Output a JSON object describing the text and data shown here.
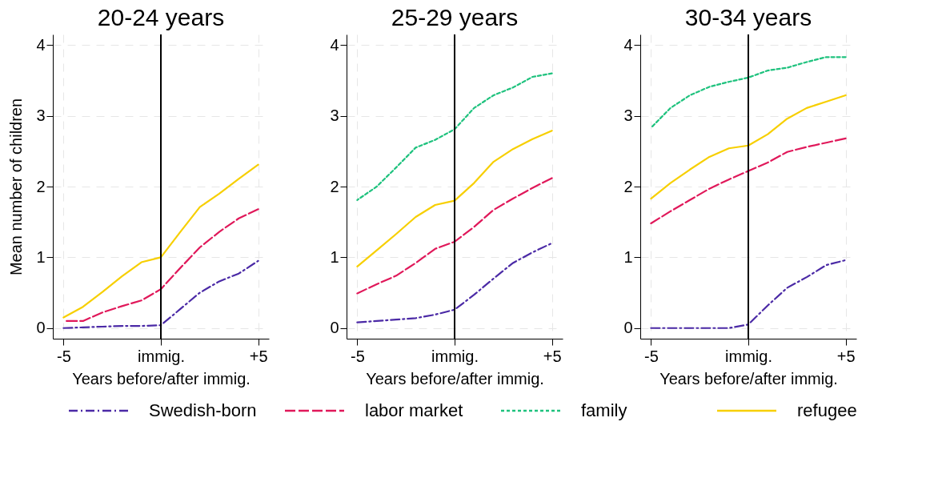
{
  "chart_data": [
    {
      "type": "line",
      "title": "20-24 years",
      "xlabel": "Years before/after immig.",
      "ylabel": "Mean number of children",
      "x": [
        -5,
        -4,
        -3,
        -2,
        -1,
        0,
        1,
        2,
        3,
        4,
        5
      ],
      "series": [
        {
          "name": "Swedish-born",
          "color": "#4b2aa6",
          "line_style": "dashdot",
          "values": [
            0.0,
            0.01,
            0.02,
            0.03,
            0.03,
            0.04,
            0.27,
            0.5,
            0.66,
            0.77,
            0.95
          ]
        },
        {
          "name": "labor market",
          "color": "#e0185a",
          "line_style": "dashed",
          "values": [
            0.1,
            0.1,
            0.22,
            0.31,
            0.39,
            0.55,
            0.85,
            1.14,
            1.36,
            1.55,
            1.68
          ]
        },
        {
          "name": "refugee",
          "color": "#f7cf00",
          "line_style": "solid",
          "values": [
            0.15,
            0.3,
            0.51,
            0.73,
            0.93,
            1.0,
            1.36,
            1.71,
            1.9,
            2.11,
            2.31
          ]
        }
      ],
      "xlim": [
        -5.55,
        5.55
      ],
      "xticks": [
        {
          "value": -5,
          "label": "-5"
        },
        {
          "value": 0,
          "label": "immig."
        },
        {
          "value": 5,
          "label": "+5"
        }
      ],
      "ylim": [
        -0.15,
        4.15
      ],
      "yticks": [
        0,
        1,
        2,
        3,
        4
      ],
      "ref_lines": [
        {
          "axis": "x",
          "value": 0,
          "color": "#000000"
        }
      ],
      "grid": true,
      "legend": "bottom"
    },
    {
      "type": "line",
      "title": "25-29 years",
      "xlabel": "Years before/after immig.",
      "x": [
        -5,
        -4,
        -3,
        -2,
        -1,
        0,
        1,
        2,
        3,
        4,
        5
      ],
      "series": [
        {
          "name": "Swedish-born",
          "color": "#4b2aa6",
          "line_style": "dashdot",
          "values": [
            0.08,
            0.1,
            0.12,
            0.14,
            0.19,
            0.26,
            0.47,
            0.7,
            0.92,
            1.07,
            1.2
          ]
        },
        {
          "name": "labor market",
          "color": "#e0185a",
          "line_style": "dashed",
          "values": [
            0.49,
            0.62,
            0.74,
            0.92,
            1.12,
            1.22,
            1.43,
            1.67,
            1.83,
            1.98,
            2.12
          ]
        },
        {
          "name": "family",
          "color": "#1fc27e",
          "line_style": "dotted",
          "values": [
            1.81,
            2.0,
            2.27,
            2.55,
            2.66,
            2.81,
            3.11,
            3.29,
            3.4,
            3.55,
            3.6
          ]
        },
        {
          "name": "refugee",
          "color": "#f7cf00",
          "line_style": "solid",
          "values": [
            0.87,
            1.1,
            1.33,
            1.57,
            1.74,
            1.8,
            2.05,
            2.35,
            2.53,
            2.67,
            2.79
          ]
        }
      ],
      "xlim": [
        -5.55,
        5.55
      ],
      "xticks": [
        {
          "value": -5,
          "label": "-5"
        },
        {
          "value": 0,
          "label": "immig."
        },
        {
          "value": 5,
          "label": "+5"
        }
      ],
      "ylim": [
        -0.15,
        4.15
      ],
      "yticks": [
        0,
        1,
        2,
        3,
        4
      ],
      "ref_lines": [
        {
          "axis": "x",
          "value": 0,
          "color": "#000000"
        }
      ],
      "grid": true
    },
    {
      "type": "line",
      "title": "30-34 years",
      "xlabel": "Years before/after immig.",
      "x": [
        -5,
        -4,
        -3,
        -2,
        -1,
        0,
        1,
        2,
        3,
        4,
        5
      ],
      "series": [
        {
          "name": "Swedish-born",
          "color": "#4b2aa6",
          "line_style": "dashdot",
          "values": [
            0.0,
            0.0,
            0.0,
            0.0,
            0.0,
            0.05,
            0.32,
            0.57,
            0.72,
            0.89,
            0.96
          ]
        },
        {
          "name": "labor market",
          "color": "#e0185a",
          "line_style": "dashed",
          "values": [
            1.48,
            1.65,
            1.81,
            1.97,
            2.1,
            2.22,
            2.34,
            2.49,
            2.56,
            2.62,
            2.68
          ]
        },
        {
          "name": "family",
          "color": "#1fc27e",
          "line_style": "dotted",
          "values": [
            2.83,
            3.11,
            3.29,
            3.41,
            3.48,
            3.54,
            3.64,
            3.68,
            3.76,
            3.83,
            3.83
          ]
        },
        {
          "name": "refugee",
          "color": "#f7cf00",
          "line_style": "solid",
          "values": [
            1.83,
            2.05,
            2.24,
            2.42,
            2.54,
            2.58,
            2.74,
            2.96,
            3.11,
            3.2,
            3.29
          ]
        }
      ],
      "xlim": [
        -5.55,
        5.55
      ],
      "xticks": [
        {
          "value": -5,
          "label": "-5"
        },
        {
          "value": 0,
          "label": "immig."
        },
        {
          "value": 5,
          "label": "+5"
        }
      ],
      "ylim": [
        -0.15,
        4.15
      ],
      "yticks": [
        0,
        1,
        2,
        3,
        4
      ],
      "ref_lines": [
        {
          "axis": "x",
          "value": 0,
          "color": "#000000"
        }
      ],
      "grid": true
    }
  ]
}
